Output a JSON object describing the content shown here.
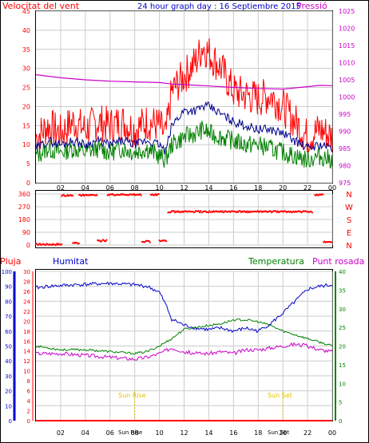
{
  "header": {
    "wind_title": "Velocitat del vent",
    "date_title": "24 hour graph day : 16 Septiembre 2015",
    "pressure_title": "Pressió"
  },
  "legend_lower": {
    "rain": "Pluja",
    "humidity": "Humitat",
    "temperature": "Temperatura",
    "dewpoint": "Punt rosada"
  },
  "annotations": {
    "sunrise": "Sun Rise",
    "sunset": "Sun Set"
  },
  "colors": {
    "wind": "#ff0000",
    "gust": "#ff0000",
    "wind_avg": "#00008b",
    "wind_low": "#008000",
    "pressure": "#cc00cc",
    "humidity": "#0000cc",
    "temperature": "#008000",
    "dewpoint": "#cc00cc",
    "rain": "#ff0000",
    "sun": "#e0c000",
    "axis": "#000000",
    "grid": "#cccccc"
  },
  "chart_data": [
    {
      "type": "line",
      "title": "Velocitat del vent",
      "secondary_title": "Pressió",
      "x_ticks": [
        "02",
        "04",
        "06",
        "08",
        "10",
        "12",
        "14",
        "16",
        "18",
        "20",
        "22",
        "00"
      ],
      "y_ticks": [
        0,
        5,
        10,
        15,
        20,
        25,
        30,
        35,
        40,
        45
      ],
      "ylim": [
        0,
        45
      ],
      "y2_ticks": [
        975,
        980,
        985,
        990,
        995,
        1000,
        1005,
        1010,
        1015,
        1020,
        1025
      ],
      "y2lim": [
        975,
        1025
      ],
      "grid": true,
      "series": [
        {
          "x": [
            0,
            1,
            2,
            3,
            4,
            5,
            6,
            7,
            8,
            9,
            10,
            10.5,
            11,
            12,
            13,
            13.5,
            14,
            15,
            16,
            17,
            18,
            19,
            20,
            21,
            22,
            23,
            24
          ],
          "y": [
            12,
            15,
            13,
            16,
            14,
            16,
            15,
            16,
            14,
            16,
            15,
            12,
            24,
            28,
            32,
            36,
            34,
            30,
            24,
            23,
            22,
            23,
            20,
            16,
            12,
            14,
            12
          ]
        },
        {
          "x": [
            0,
            1,
            2,
            3,
            4,
            5,
            6,
            7,
            8,
            9,
            10,
            10.5,
            11,
            12,
            13,
            13.5,
            14,
            15,
            16,
            17,
            18,
            19,
            20,
            21,
            22,
            23,
            24
          ],
          "y": [
            9,
            11,
            10,
            11,
            10,
            11,
            10,
            11,
            10,
            11,
            10,
            8,
            15,
            19,
            19,
            20,
            20,
            18,
            16,
            15,
            14,
            14,
            13,
            11,
            9,
            10,
            9
          ]
        },
        {
          "x": [
            0,
            1,
            2,
            3,
            4,
            5,
            6,
            7,
            8,
            9,
            10,
            10.5,
            11,
            12,
            13,
            13.5,
            14,
            15,
            16,
            17,
            18,
            19,
            20,
            21,
            22,
            23,
            24
          ],
          "y": [
            7,
            9,
            8,
            9,
            8,
            9,
            8,
            9,
            8,
            9,
            7,
            6,
            10,
            12,
            13,
            14,
            13,
            12,
            11,
            10,
            10,
            9,
            8,
            7,
            6,
            7,
            6
          ]
        },
        {
          "x": [
            0,
            2,
            4,
            6,
            8,
            10,
            11,
            12,
            14,
            16,
            18,
            20,
            22,
            23,
            24
          ],
          "y": [
            1006.5,
            1005.6,
            1005.0,
            1004.6,
            1004.4,
            1004.2,
            1003.8,
            1003.6,
            1003.2,
            1002.8,
            1002.5,
            1002.3,
            1003.0,
            1003.4,
            1003.3
          ]
        }
      ]
    },
    {
      "type": "scatter",
      "title": "",
      "x_ticks": [
        "02",
        "04",
        "06",
        "08",
        "10",
        "12",
        "14",
        "16",
        "18",
        "20",
        "22",
        "00"
      ],
      "y_ticks": [
        0,
        90,
        180,
        270,
        360
      ],
      "ylim": [
        0,
        360
      ],
      "right_labels": [
        "N",
        "W",
        "S",
        "E",
        "N"
      ],
      "series": [
        {
          "segments": [
            {
              "x": [
                0,
                2.1
              ],
              "y": [
                5,
                5
              ]
            },
            {
              "x": [
                2.1,
                3.0
              ],
              "y": [
                350,
                350
              ]
            },
            {
              "x": [
                3.0,
                3.5
              ],
              "y": [
                15,
                15
              ]
            },
            {
              "x": [
                3.5,
                5.0
              ],
              "y": [
                352,
                352
              ]
            },
            {
              "x": [
                5.0,
                5.8
              ],
              "y": [
                30,
                30
              ]
            },
            {
              "x": [
                5.8,
                8.6
              ],
              "y": [
                355,
                355
              ]
            },
            {
              "x": [
                8.6,
                9.3
              ],
              "y": [
                25,
                25
              ]
            },
            {
              "x": [
                9.3,
                10.0
              ],
              "y": [
                355,
                355
              ]
            },
            {
              "x": [
                10.0,
                10.6
              ],
              "y": [
                30,
                30
              ]
            },
            {
              "x": [
                10.7,
                22.4
              ],
              "y": [
                235,
                235
              ]
            },
            {
              "x": [
                22.6,
                23.3
              ],
              "y": [
                355,
                355
              ]
            },
            {
              "x": [
                23.3,
                24
              ],
              "y": [
                20,
                20
              ]
            }
          ]
        }
      ]
    },
    {
      "type": "line",
      "title": "",
      "x_ticks": [
        "02",
        "04",
        "06",
        "08",
        "10",
        "12",
        "14",
        "16",
        "18",
        "20",
        "22",
        "00"
      ],
      "y_ticks": [
        0,
        10,
        20,
        30,
        40,
        50,
        60,
        70,
        80,
        90,
        100
      ],
      "ylim": [
        0,
        100
      ],
      "y_ticks_rain": [
        0,
        2,
        4,
        6,
        8,
        10,
        12,
        14,
        16,
        18,
        20,
        22,
        24,
        26,
        28,
        30
      ],
      "y_ticks_temp": [
        0,
        5,
        10,
        15,
        20,
        25,
        30,
        35,
        40
      ],
      "ytemp_lim": [
        0,
        40
      ],
      "sunrise_x": 8.0,
      "sunset_x": 20.0,
      "series": [
        {
          "name": "Humitat",
          "x": [
            0,
            1,
            3,
            6,
            8,
            9,
            10,
            10.5,
            11,
            12,
            13,
            14,
            15,
            16,
            17,
            18,
            19,
            20,
            21,
            22,
            23,
            24
          ],
          "y": [
            89,
            90,
            91,
            92,
            91,
            90,
            86,
            78,
            68,
            64,
            62,
            61,
            62,
            60,
            62,
            60,
            65,
            72,
            80,
            88,
            90,
            91
          ]
        },
        {
          "name": "Temperatura",
          "x": [
            0,
            2,
            4,
            6,
            8,
            9,
            10,
            11,
            12,
            13,
            14,
            15,
            16,
            17,
            18,
            19,
            20,
            21,
            22,
            23,
            24
          ],
          "y": [
            20,
            19,
            19,
            18.5,
            18,
            18.5,
            20,
            22,
            24.5,
            25,
            25.5,
            26,
            27,
            27,
            26.5,
            25.5,
            24,
            23,
            22,
            21,
            20
          ]
        },
        {
          "name": "Punt rosada",
          "x": [
            0,
            2,
            4,
            6,
            8,
            9,
            10,
            11,
            12,
            13,
            14,
            15,
            16,
            17,
            18,
            19,
            20,
            21,
            22,
            23,
            24
          ],
          "y": [
            18,
            18,
            17.5,
            17,
            16.5,
            17,
            18,
            19.5,
            18.5,
            18,
            18,
            18.5,
            18,
            19,
            19,
            19.5,
            20,
            20.5,
            20,
            19,
            18.5
          ]
        },
        {
          "name": "Pluja",
          "x": [
            0,
            24
          ],
          "y": [
            0,
            0
          ]
        }
      ]
    }
  ]
}
